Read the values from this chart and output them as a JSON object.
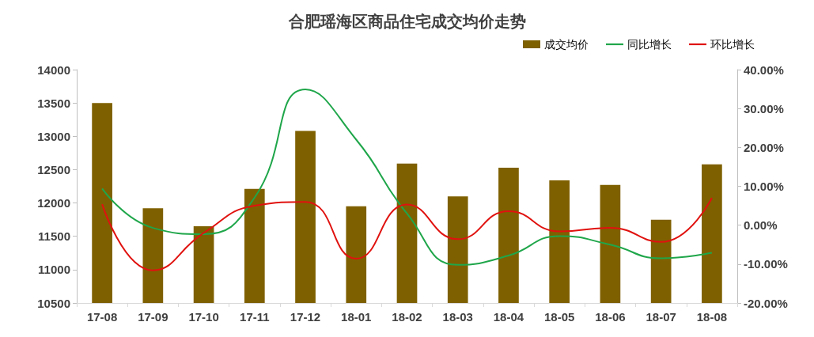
{
  "chart_data": {
    "type": "bar",
    "title": "合肥瑶海区商品住宅成交均价走势",
    "categories": [
      "17-08",
      "17-09",
      "17-10",
      "17-11",
      "17-12",
      "18-01",
      "18-02",
      "18-03",
      "18-04",
      "18-05",
      "18-06",
      "18-07",
      "18-08"
    ],
    "series": [
      {
        "name": "成交均价",
        "color": "#7f6000",
        "values": [
          13500,
          11920,
          11650,
          12210,
          13080,
          11950,
          12590,
          12100,
          12530,
          12340,
          12270,
          11750,
          12580
        ]
      },
      {
        "name": "同比增长",
        "type": "line",
        "axis": "y2",
        "color": "#1fa64a",
        "values": [
          9.4,
          -0.7,
          -2.3,
          7.1,
          34.9,
          22.0,
          3.0,
          -10.2,
          -7.8,
          -2.8,
          -5.0,
          -8.5,
          -7.1
        ]
      },
      {
        "name": "环比增长",
        "type": "line",
        "axis": "y2",
        "color": "#e0120f",
        "values": [
          5.4,
          -11.6,
          -2.0,
          5.0,
          6.0,
          -8.6,
          5.3,
          -3.6,
          3.6,
          -1.6,
          -0.7,
          -4.3,
          7.0
        ]
      }
    ],
    "ylim": [
      10500,
      14000
    ],
    "yticks": [
      10500,
      11000,
      11500,
      12000,
      12500,
      13000,
      13500,
      14000
    ],
    "y2lim": [
      -20,
      40
    ],
    "y2ticks": [
      {
        "value": -20,
        "label": "-20.00%"
      },
      {
        "value": -10,
        "label": "-10.00%"
      },
      {
        "value": 0,
        "label": "0.00%"
      },
      {
        "value": 10,
        "label": "10.00%"
      },
      {
        "value": 20,
        "label": "20.00%"
      },
      {
        "value": 30,
        "label": "30.00%"
      },
      {
        "value": 40,
        "label": "40.00%"
      }
    ],
    "grid": false,
    "legend": "top right",
    "marker": "none",
    "line_style": "solid"
  }
}
